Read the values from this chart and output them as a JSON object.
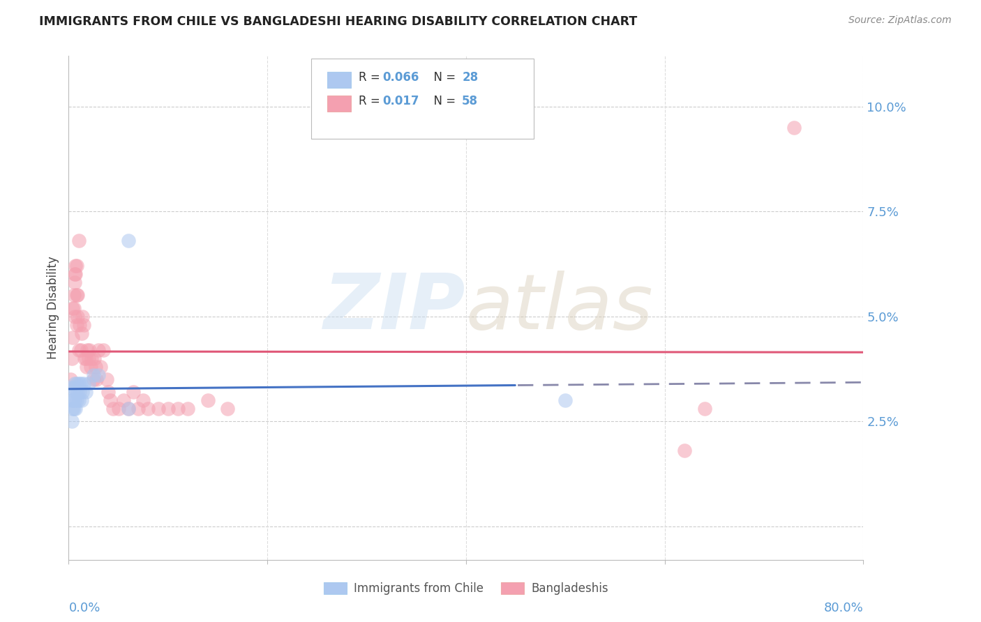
{
  "title": "IMMIGRANTS FROM CHILE VS BANGLADESHI HEARING DISABILITY CORRELATION CHART",
  "source": "Source: ZipAtlas.com",
  "ylabel": "Hearing Disability",
  "yticks": [
    0.0,
    0.025,
    0.05,
    0.075,
    0.1
  ],
  "ytick_labels": [
    "",
    "2.5%",
    "5.0%",
    "7.5%",
    "10.0%"
  ],
  "xlim": [
    0.0,
    0.8
  ],
  "ylim": [
    -0.008,
    0.112
  ],
  "color_blue_fill": "#adc8f0",
  "color_pink_fill": "#f4a0b0",
  "color_blue_line": "#4472c4",
  "color_pink_line": "#e05878",
  "color_blue_dashed": "#8888aa",
  "color_axis_label": "#5b9bd5",
  "chile_x": [
    0.002,
    0.003,
    0.003,
    0.004,
    0.004,
    0.005,
    0.005,
    0.006,
    0.006,
    0.007,
    0.007,
    0.008,
    0.008,
    0.009,
    0.01,
    0.01,
    0.011,
    0.012,
    0.013,
    0.014,
    0.015,
    0.017,
    0.02,
    0.025,
    0.03,
    0.06,
    0.5,
    0.06
  ],
  "chile_y": [
    0.033,
    0.03,
    0.025,
    0.03,
    0.028,
    0.033,
    0.028,
    0.034,
    0.03,
    0.032,
    0.028,
    0.034,
    0.03,
    0.032,
    0.034,
    0.03,
    0.032,
    0.034,
    0.03,
    0.032,
    0.034,
    0.032,
    0.034,
    0.036,
    0.036,
    0.068,
    0.03,
    0.028
  ],
  "bangla_x": [
    0.002,
    0.003,
    0.004,
    0.004,
    0.005,
    0.006,
    0.006,
    0.007,
    0.008,
    0.008,
    0.009,
    0.01,
    0.011,
    0.012,
    0.013,
    0.014,
    0.015,
    0.016,
    0.017,
    0.018,
    0.019,
    0.02,
    0.021,
    0.022,
    0.023,
    0.025,
    0.026,
    0.027,
    0.028,
    0.03,
    0.032,
    0.035,
    0.038,
    0.04,
    0.042,
    0.045,
    0.05,
    0.055,
    0.06,
    0.065,
    0.07,
    0.075,
    0.08,
    0.09,
    0.1,
    0.11,
    0.12,
    0.14,
    0.16,
    0.62,
    0.005,
    0.006,
    0.007,
    0.008,
    0.009,
    0.01,
    0.73,
    0.64
  ],
  "bangla_y": [
    0.035,
    0.04,
    0.052,
    0.045,
    0.055,
    0.06,
    0.05,
    0.062,
    0.055,
    0.048,
    0.05,
    0.042,
    0.048,
    0.042,
    0.046,
    0.05,
    0.048,
    0.04,
    0.04,
    0.038,
    0.042,
    0.04,
    0.042,
    0.038,
    0.04,
    0.035,
    0.04,
    0.038,
    0.035,
    0.042,
    0.038,
    0.042,
    0.035,
    0.032,
    0.03,
    0.028,
    0.028,
    0.03,
    0.028,
    0.032,
    0.028,
    0.03,
    0.028,
    0.028,
    0.028,
    0.028,
    0.028,
    0.03,
    0.028,
    0.018,
    0.052,
    0.058,
    0.06,
    0.062,
    0.055,
    0.068,
    0.095,
    0.028
  ]
}
